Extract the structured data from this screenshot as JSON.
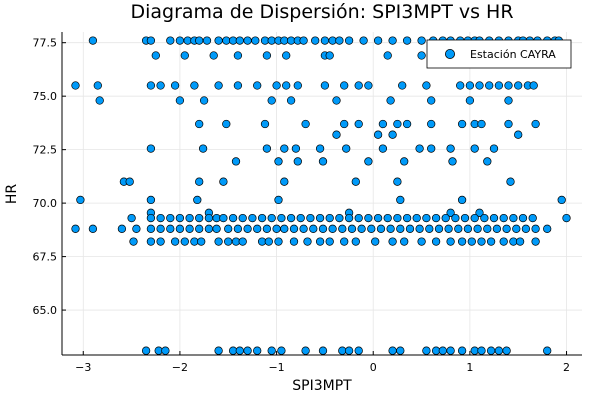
{
  "chart_data": {
    "type": "scatter",
    "title": "Diagrama de Dispersión: SPI3MPT vs HR",
    "xlabel": "SPI3MPT",
    "ylabel": "HR",
    "xlim": [
      -3.22,
      2.16
    ],
    "ylim": [
      62.9,
      78.0
    ],
    "xticks": [
      -3,
      -2,
      -1,
      0,
      1,
      2
    ],
    "xtick_labels": [
      "−3",
      "−2",
      "−1",
      "0",
      "1",
      "2"
    ],
    "yticks": [
      65.0,
      67.5,
      70.0,
      72.5,
      75.0,
      77.5
    ],
    "ytick_labels": [
      "65.0",
      "67.5",
      "70.0",
      "72.5",
      "75.0",
      "77.5"
    ],
    "grid": true,
    "legend_position": "top-right",
    "series": [
      {
        "name": "Estación CAYRA",
        "color": "#009af9",
        "points": [
          [
            -2.9,
            77.6
          ],
          [
            -2.35,
            77.6
          ],
          [
            -2.3,
            77.6
          ],
          [
            -2.1,
            77.6
          ],
          [
            -2.0,
            77.6
          ],
          [
            -1.92,
            77.6
          ],
          [
            -1.85,
            77.6
          ],
          [
            -1.8,
            77.6
          ],
          [
            -1.72,
            77.6
          ],
          [
            -1.6,
            77.6
          ],
          [
            -1.52,
            77.6
          ],
          [
            -1.45,
            77.6
          ],
          [
            -1.38,
            77.6
          ],
          [
            -1.3,
            77.6
          ],
          [
            -1.22,
            77.6
          ],
          [
            -1.12,
            77.6
          ],
          [
            -1.05,
            77.6
          ],
          [
            -0.98,
            77.6
          ],
          [
            -0.92,
            77.6
          ],
          [
            -0.85,
            77.6
          ],
          [
            -0.78,
            77.6
          ],
          [
            -0.72,
            77.6
          ],
          [
            -0.6,
            77.6
          ],
          [
            -0.5,
            77.6
          ],
          [
            -0.42,
            77.6
          ],
          [
            -0.35,
            77.6
          ],
          [
            -0.25,
            77.6
          ],
          [
            -0.1,
            77.6
          ],
          [
            0.05,
            77.6
          ],
          [
            0.2,
            77.6
          ],
          [
            0.35,
            77.6
          ],
          [
            0.5,
            77.6
          ],
          [
            0.62,
            77.6
          ],
          [
            0.72,
            77.6
          ],
          [
            0.8,
            77.6
          ],
          [
            0.9,
            77.6
          ],
          [
            0.98,
            77.6
          ],
          [
            1.05,
            77.6
          ],
          [
            1.1,
            77.6
          ],
          [
            1.2,
            77.6
          ],
          [
            1.3,
            77.6
          ],
          [
            1.4,
            77.6
          ],
          [
            1.5,
            77.6
          ],
          [
            1.55,
            77.6
          ],
          [
            1.62,
            77.6
          ],
          [
            1.7,
            77.6
          ],
          [
            1.8,
            77.6
          ],
          [
            1.88,
            77.6
          ],
          [
            1.92,
            77.6
          ],
          [
            -2.25,
            76.9
          ],
          [
            -1.95,
            76.9
          ],
          [
            -1.65,
            76.9
          ],
          [
            -1.4,
            76.9
          ],
          [
            -1.1,
            76.9
          ],
          [
            -0.9,
            76.9
          ],
          [
            -0.5,
            76.9
          ],
          [
            -0.45,
            76.9
          ],
          [
            0.15,
            76.9
          ],
          [
            0.5,
            76.9
          ],
          [
            0.95,
            76.9
          ],
          [
            1.3,
            76.9
          ],
          [
            1.48,
            76.9
          ],
          [
            1.7,
            76.9
          ],
          [
            -3.08,
            75.5
          ],
          [
            -2.85,
            75.5
          ],
          [
            -2.3,
            75.5
          ],
          [
            -2.2,
            75.5
          ],
          [
            -2.05,
            75.5
          ],
          [
            -1.85,
            75.5
          ],
          [
            -1.6,
            75.5
          ],
          [
            -1.4,
            75.5
          ],
          [
            -1.2,
            75.5
          ],
          [
            -1.0,
            75.5
          ],
          [
            -0.9,
            75.5
          ],
          [
            -0.78,
            75.5
          ],
          [
            -0.5,
            75.5
          ],
          [
            -0.3,
            75.5
          ],
          [
            -0.15,
            75.5
          ],
          [
            -0.05,
            75.5
          ],
          [
            0.3,
            75.5
          ],
          [
            0.55,
            75.5
          ],
          [
            0.9,
            75.5
          ],
          [
            1.0,
            75.5
          ],
          [
            1.1,
            75.5
          ],
          [
            1.2,
            75.5
          ],
          [
            1.3,
            75.5
          ],
          [
            1.4,
            75.5
          ],
          [
            1.5,
            75.5
          ],
          [
            1.6,
            75.5
          ],
          [
            1.66,
            75.5
          ],
          [
            -2.83,
            74.8
          ],
          [
            -2.0,
            74.8
          ],
          [
            -1.75,
            74.8
          ],
          [
            -1.05,
            74.8
          ],
          [
            -0.85,
            74.8
          ],
          [
            -0.38,
            74.8
          ],
          [
            0.18,
            74.8
          ],
          [
            0.6,
            74.8
          ],
          [
            1.0,
            74.8
          ],
          [
            1.4,
            74.8
          ],
          [
            -1.8,
            73.7
          ],
          [
            -1.52,
            73.7
          ],
          [
            -1.12,
            73.7
          ],
          [
            -0.7,
            73.7
          ],
          [
            -0.3,
            73.7
          ],
          [
            -0.15,
            73.7
          ],
          [
            0.1,
            73.7
          ],
          [
            0.25,
            73.7
          ],
          [
            0.35,
            73.7
          ],
          [
            0.6,
            73.7
          ],
          [
            0.92,
            73.7
          ],
          [
            1.05,
            73.7
          ],
          [
            1.12,
            73.7
          ],
          [
            1.4,
            73.7
          ],
          [
            1.68,
            73.7
          ],
          [
            -0.38,
            73.2
          ],
          [
            0.05,
            73.2
          ],
          [
            0.2,
            73.2
          ],
          [
            1.5,
            73.2
          ],
          [
            -2.3,
            72.55
          ],
          [
            -1.76,
            72.55
          ],
          [
            -1.1,
            72.55
          ],
          [
            -0.92,
            72.55
          ],
          [
            -0.8,
            72.55
          ],
          [
            -0.55,
            72.55
          ],
          [
            -0.28,
            72.55
          ],
          [
            0.1,
            72.55
          ],
          [
            0.48,
            72.55
          ],
          [
            0.6,
            72.55
          ],
          [
            0.8,
            72.55
          ],
          [
            1.05,
            72.55
          ],
          [
            1.25,
            72.55
          ],
          [
            -1.42,
            71.95
          ],
          [
            -0.98,
            71.95
          ],
          [
            -0.78,
            71.95
          ],
          [
            -0.52,
            71.95
          ],
          [
            -0.05,
            71.95
          ],
          [
            0.32,
            71.95
          ],
          [
            0.82,
            71.95
          ],
          [
            1.18,
            71.95
          ],
          [
            -2.58,
            71.0
          ],
          [
            -2.52,
            71.0
          ],
          [
            -1.8,
            71.0
          ],
          [
            -1.55,
            71.0
          ],
          [
            -0.92,
            71.0
          ],
          [
            -0.18,
            71.0
          ],
          [
            0.25,
            71.0
          ],
          [
            1.42,
            71.0
          ],
          [
            -3.03,
            70.15
          ],
          [
            -2.3,
            70.15
          ],
          [
            -1.82,
            70.15
          ],
          [
            -0.98,
            70.15
          ],
          [
            0.28,
            70.15
          ],
          [
            0.92,
            70.15
          ],
          [
            1.95,
            70.15
          ],
          [
            -2.3,
            69.55
          ],
          [
            -1.7,
            69.55
          ],
          [
            -0.25,
            69.55
          ],
          [
            0.8,
            69.55
          ],
          [
            1.1,
            69.55
          ],
          [
            -2.5,
            69.3
          ],
          [
            -2.3,
            69.3
          ],
          [
            -2.2,
            69.3
          ],
          [
            -2.1,
            69.3
          ],
          [
            -2.0,
            69.3
          ],
          [
            -1.9,
            69.3
          ],
          [
            -1.8,
            69.3
          ],
          [
            -1.7,
            69.3
          ],
          [
            -1.62,
            69.3
          ],
          [
            -1.55,
            69.3
          ],
          [
            -1.45,
            69.3
          ],
          [
            -1.35,
            69.3
          ],
          [
            -1.25,
            69.3
          ],
          [
            -1.15,
            69.3
          ],
          [
            -1.05,
            69.3
          ],
          [
            -0.95,
            69.3
          ],
          [
            -0.85,
            69.3
          ],
          [
            -0.75,
            69.3
          ],
          [
            -0.65,
            69.3
          ],
          [
            -0.55,
            69.3
          ],
          [
            -0.45,
            69.3
          ],
          [
            -0.35,
            69.3
          ],
          [
            -0.25,
            69.3
          ],
          [
            -0.15,
            69.3
          ],
          [
            -0.05,
            69.3
          ],
          [
            0.05,
            69.3
          ],
          [
            0.15,
            69.3
          ],
          [
            0.25,
            69.3
          ],
          [
            0.35,
            69.3
          ],
          [
            0.45,
            69.3
          ],
          [
            0.55,
            69.3
          ],
          [
            0.65,
            69.3
          ],
          [
            0.75,
            69.3
          ],
          [
            0.85,
            69.3
          ],
          [
            0.95,
            69.3
          ],
          [
            1.05,
            69.3
          ],
          [
            1.15,
            69.3
          ],
          [
            1.25,
            69.3
          ],
          [
            1.35,
            69.3
          ],
          [
            1.45,
            69.3
          ],
          [
            1.55,
            69.3
          ],
          [
            1.65,
            69.3
          ],
          [
            2.0,
            69.3
          ],
          [
            -3.08,
            68.8
          ],
          [
            -2.9,
            68.8
          ],
          [
            -2.6,
            68.8
          ],
          [
            -2.45,
            68.8
          ],
          [
            -2.3,
            68.8
          ],
          [
            -2.2,
            68.8
          ],
          [
            -2.1,
            68.8
          ],
          [
            -2.0,
            68.8
          ],
          [
            -1.9,
            68.8
          ],
          [
            -1.8,
            68.8
          ],
          [
            -1.7,
            68.8
          ],
          [
            -1.62,
            68.8
          ],
          [
            -1.5,
            68.8
          ],
          [
            -1.4,
            68.8
          ],
          [
            -1.3,
            68.8
          ],
          [
            -1.2,
            68.8
          ],
          [
            -1.1,
            68.8
          ],
          [
            -1.0,
            68.8
          ],
          [
            -0.92,
            68.8
          ],
          [
            -0.82,
            68.8
          ],
          [
            -0.72,
            68.8
          ],
          [
            -0.62,
            68.8
          ],
          [
            -0.52,
            68.8
          ],
          [
            -0.42,
            68.8
          ],
          [
            -0.32,
            68.8
          ],
          [
            -0.22,
            68.8
          ],
          [
            -0.12,
            68.8
          ],
          [
            -0.02,
            68.8
          ],
          [
            0.08,
            68.8
          ],
          [
            0.18,
            68.8
          ],
          [
            0.28,
            68.8
          ],
          [
            0.38,
            68.8
          ],
          [
            0.48,
            68.8
          ],
          [
            0.58,
            68.8
          ],
          [
            0.68,
            68.8
          ],
          [
            0.78,
            68.8
          ],
          [
            0.88,
            68.8
          ],
          [
            0.98,
            68.8
          ],
          [
            1.08,
            68.8
          ],
          [
            1.18,
            68.8
          ],
          [
            1.28,
            68.8
          ],
          [
            1.38,
            68.8
          ],
          [
            1.48,
            68.8
          ],
          [
            1.58,
            68.8
          ],
          [
            1.68,
            68.8
          ],
          [
            1.8,
            68.8
          ],
          [
            -2.48,
            68.2
          ],
          [
            -2.3,
            68.2
          ],
          [
            -2.2,
            68.2
          ],
          [
            -2.05,
            68.2
          ],
          [
            -1.95,
            68.2
          ],
          [
            -1.85,
            68.2
          ],
          [
            -1.78,
            68.2
          ],
          [
            -1.6,
            68.2
          ],
          [
            -1.5,
            68.2
          ],
          [
            -1.42,
            68.2
          ],
          [
            -1.35,
            68.2
          ],
          [
            -1.15,
            68.2
          ],
          [
            -1.08,
            68.2
          ],
          [
            -0.98,
            68.2
          ],
          [
            -0.82,
            68.2
          ],
          [
            -0.68,
            68.2
          ],
          [
            -0.55,
            68.2
          ],
          [
            -0.45,
            68.2
          ],
          [
            -0.3,
            68.2
          ],
          [
            -0.18,
            68.2
          ],
          [
            0.02,
            68.2
          ],
          [
            0.2,
            68.2
          ],
          [
            0.32,
            68.2
          ],
          [
            0.5,
            68.2
          ],
          [
            0.65,
            68.2
          ],
          [
            0.8,
            68.2
          ],
          [
            0.92,
            68.2
          ],
          [
            1.02,
            68.2
          ],
          [
            1.12,
            68.2
          ],
          [
            1.22,
            68.2
          ],
          [
            1.35,
            68.2
          ],
          [
            1.45,
            68.2
          ],
          [
            1.52,
            68.2
          ],
          [
            1.68,
            68.2
          ],
          [
            -2.35,
            63.1
          ],
          [
            -2.22,
            63.1
          ],
          [
            -2.15,
            63.1
          ],
          [
            -1.6,
            63.1
          ],
          [
            -1.45,
            63.1
          ],
          [
            -1.38,
            63.1
          ],
          [
            -1.3,
            63.1
          ],
          [
            -1.2,
            63.1
          ],
          [
            -1.05,
            63.1
          ],
          [
            -0.95,
            63.1
          ],
          [
            -0.7,
            63.1
          ],
          [
            -0.52,
            63.1
          ],
          [
            -0.32,
            63.1
          ],
          [
            -0.25,
            63.1
          ],
          [
            -0.15,
            63.1
          ],
          [
            0.2,
            63.1
          ],
          [
            0.28,
            63.1
          ],
          [
            0.55,
            63.1
          ],
          [
            0.65,
            63.1
          ],
          [
            0.72,
            63.1
          ],
          [
            0.8,
            63.1
          ],
          [
            0.92,
            63.1
          ],
          [
            1.05,
            63.1
          ],
          [
            1.12,
            63.1
          ],
          [
            1.22,
            63.1
          ],
          [
            1.3,
            63.1
          ],
          [
            1.38,
            63.1
          ],
          [
            1.8,
            63.1
          ]
        ]
      }
    ]
  }
}
